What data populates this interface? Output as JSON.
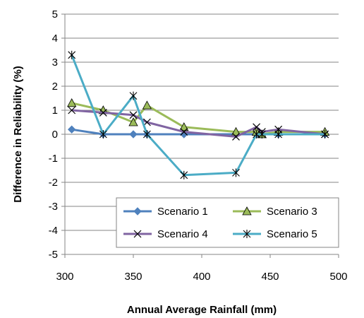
{
  "chart_data": {
    "type": "line",
    "title": "",
    "xlabel": "Annual Average Rainfall (mm)",
    "ylabel": "Difference in Reliability (%)",
    "xlim": [
      300,
      500
    ],
    "ylim": [
      -5,
      5
    ],
    "xticks": [
      300,
      350,
      400,
      450,
      500
    ],
    "yticks": [
      5,
      4,
      3,
      2,
      1,
      0,
      -1,
      -2,
      -3,
      -4,
      -5
    ],
    "grid": "horizontal",
    "legend": "bottom-right, inside plot, 2 columns",
    "series": [
      {
        "name": "Scenario 1",
        "color": "#4F81BD",
        "marker": "diamond",
        "x": [
          305,
          328,
          350,
          360,
          387,
          425,
          440,
          444,
          456,
          490
        ],
        "y": [
          0.2,
          0.0,
          0.0,
          0.0,
          0.0,
          0.0,
          0.0,
          0.0,
          0.0,
          0.0
        ]
      },
      {
        "name": "Scenario 3",
        "color": "#9BBB59",
        "marker": "triangle",
        "x": [
          305,
          328,
          350,
          360,
          387,
          425,
          440,
          444,
          456,
          490
        ],
        "y": [
          1.3,
          1.0,
          0.5,
          1.2,
          0.3,
          0.1,
          0.1,
          0.0,
          0.1,
          0.1
        ]
      },
      {
        "name": "Scenario 4",
        "color": "#8064A2",
        "marker": "x",
        "x": [
          305,
          328,
          350,
          360,
          387,
          425,
          440,
          444,
          456,
          490
        ],
        "y": [
          1.0,
          0.9,
          0.8,
          0.5,
          0.1,
          -0.1,
          0.3,
          0.1,
          0.2,
          0.0
        ]
      },
      {
        "name": "Scenario 5",
        "color": "#4BACC6",
        "marker": "star",
        "x": [
          305,
          328,
          350,
          360,
          387,
          425,
          440,
          444,
          456,
          490
        ],
        "y": [
          3.3,
          0.0,
          1.6,
          0.0,
          -1.7,
          -1.6,
          0.0,
          0.0,
          0.0,
          0.0
        ]
      }
    ]
  }
}
